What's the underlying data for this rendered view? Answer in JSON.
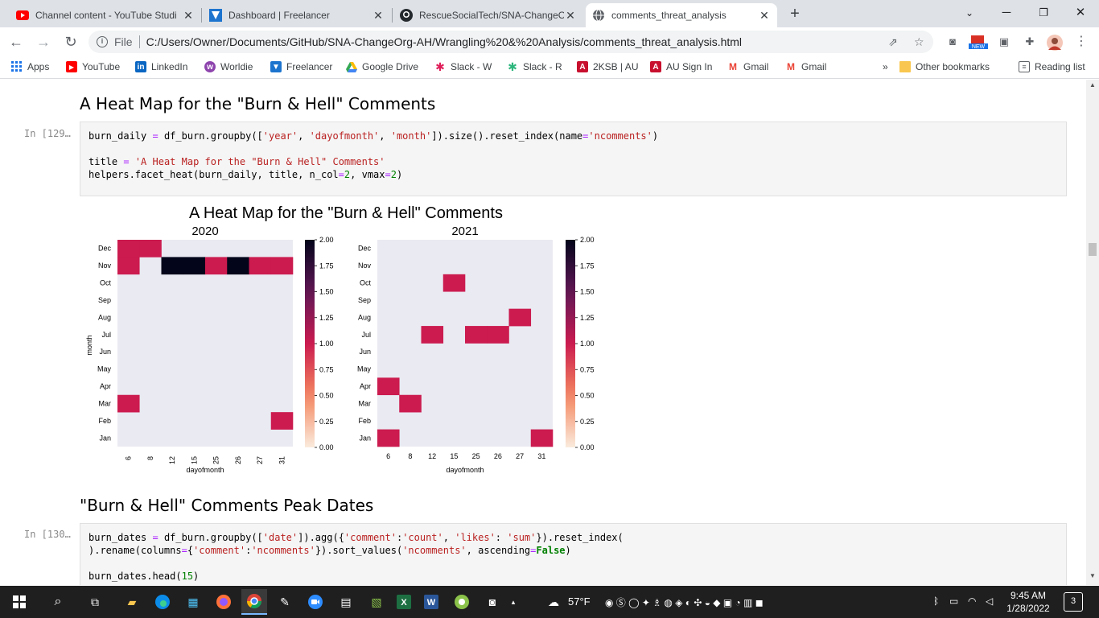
{
  "colors": {
    "accent": "#cb1b4f",
    "dark": "#03051a",
    "empty": "#eaeaf2",
    "tabbar": "#dee1e6"
  },
  "tabs": [
    {
      "label": "Channel content - YouTube Studi",
      "icon": "youtube-icon"
    },
    {
      "label": "Dashboard | Freelancer",
      "icon": "freelancer-icon"
    },
    {
      "label": "RescueSocialTech/SNA-ChangeO",
      "icon": "github-icon"
    },
    {
      "label": "comments_threat_analysis",
      "icon": "globe-icon"
    }
  ],
  "toolbar": {
    "file_label": "File",
    "url": "C:/Users/Owner/Documents/GitHub/SNA-ChangeOrg-AH/Wrangling%20&%20Analysis/comments_threat_analysis.html",
    "new_badge": "NEW"
  },
  "bookmarks": [
    {
      "label": "Apps"
    },
    {
      "label": "YouTube"
    },
    {
      "label": "LinkedIn"
    },
    {
      "label": "Worldie"
    },
    {
      "label": "Freelancer"
    },
    {
      "label": "Google Drive"
    },
    {
      "label": "Slack - W"
    },
    {
      "label": "Slack - R"
    },
    {
      "label": "2KSB | AU"
    },
    {
      "label": "AU Sign In"
    },
    {
      "label": "Gmail"
    },
    {
      "label": "Gmail"
    }
  ],
  "bookmarks_overflow": "»",
  "other_bookmarks": "Other bookmarks",
  "reading_list": "Reading list",
  "notebook": {
    "heading1": "A Heat Map for the \"Burn & Hell\" Comments",
    "prompt1": "In [129…",
    "code1": {
      "l1a": "burn_daily ",
      "l1b": "=",
      "l1c": " df_burn.groupby([",
      "l1d": "'year'",
      "l1e": ", ",
      "l1f": "'dayofmonth'",
      "l1g": ", ",
      "l1h": "'month'",
      "l1i": "]).size().reset_index(name",
      "l1j": "=",
      "l1k": "'ncomments'",
      "l1l": ")",
      "l2a": "title ",
      "l2b": "=",
      "l2c": " ",
      "l2d": "'A Heat Map for the \"Burn & Hell\" Comments'",
      "l3a": "helpers.facet_heat(burn_daily, title, n_col",
      "l3b": "=",
      "l3c": "2",
      "l3d": ", vmax",
      "l3e": "=",
      "l3f": "2",
      "l3g": ")"
    },
    "heading2": "\"Burn & Hell\" Comments Peak Dates",
    "prompt2": "In [130…",
    "code2": {
      "l1a": "burn_dates ",
      "l1b": "=",
      "l1c": " df_burn.groupby([",
      "l1d": "'date'",
      "l1e": "]).agg({",
      "l1f": "'comment'",
      "l1g": ":",
      "l1h": "'count'",
      "l1i": ", ",
      "l1j": "'likes'",
      "l1k": ": ",
      "l1l": "'sum'",
      "l1m": "}).reset_index(",
      "l2a": ").rename(columns",
      "l2b": "=",
      "l2c": "{",
      "l2d": "'comment'",
      "l2e": ":",
      "l2f": "'ncomments'",
      "l2g": "}).sort_values(",
      "l2h": "'ncomments'",
      "l2i": ", ascending",
      "l2j": "=",
      "l2k": "False",
      "l2l": ")",
      "l3a": "burn_dates.head(",
      "l3b": "15",
      "l3c": ")"
    }
  },
  "chart_data": {
    "type": "heatmap",
    "title": "A Heat Map for the \"Burn & Hell\" Comments",
    "ylabel": "month",
    "xlabel": "dayofmonth",
    "rows": [
      "Dec",
      "Nov",
      "Oct",
      "Sep",
      "Aug",
      "Jul",
      "Jun",
      "May",
      "Apr",
      "Mar",
      "Feb",
      "Jan"
    ],
    "colorbar_ticks": [
      "2.00",
      "1.75",
      "1.50",
      "1.25",
      "1.00",
      "0.75",
      "0.50",
      "0.25",
      "0.00"
    ],
    "vmin": 0,
    "vmax": 2,
    "panels": [
      {
        "title": "2020",
        "columns": [
          "6",
          "8",
          "12",
          "15",
          "25",
          "26",
          "27",
          "31"
        ],
        "cells": [
          {
            "month": "Dec",
            "day": "6",
            "value": 1
          },
          {
            "month": "Dec",
            "day": "8",
            "value": 1
          },
          {
            "month": "Nov",
            "day": "6",
            "value": 1
          },
          {
            "month": "Nov",
            "day": "12",
            "value": 2
          },
          {
            "month": "Nov",
            "day": "15",
            "value": 2
          },
          {
            "month": "Nov",
            "day": "25",
            "value": 1
          },
          {
            "month": "Nov",
            "day": "26",
            "value": 2
          },
          {
            "month": "Nov",
            "day": "27",
            "value": 1
          },
          {
            "month": "Nov",
            "day": "31",
            "value": 1
          },
          {
            "month": "Mar",
            "day": "6",
            "value": 1
          },
          {
            "month": "Feb",
            "day": "31",
            "value": 1
          }
        ]
      },
      {
        "title": "2021",
        "columns": [
          "6",
          "8",
          "12",
          "15",
          "25",
          "26",
          "27",
          "31"
        ],
        "cells": [
          {
            "month": "Oct",
            "day": "15",
            "value": 1
          },
          {
            "month": "Aug",
            "day": "27",
            "value": 1
          },
          {
            "month": "Jul",
            "day": "12",
            "value": 1
          },
          {
            "month": "Jul",
            "day": "25",
            "value": 1
          },
          {
            "month": "Jul",
            "day": "26",
            "value": 1
          },
          {
            "month": "Apr",
            "day": "6",
            "value": 1
          },
          {
            "month": "Mar",
            "day": "8",
            "value": 1
          },
          {
            "month": "Jan",
            "day": "6",
            "value": 1
          },
          {
            "month": "Jan",
            "day": "31",
            "value": 1
          }
        ]
      }
    ]
  },
  "taskbar": {
    "weather": "57°F",
    "time": "9:45 AM",
    "date": "1/28/2022",
    "notifications": "3"
  }
}
